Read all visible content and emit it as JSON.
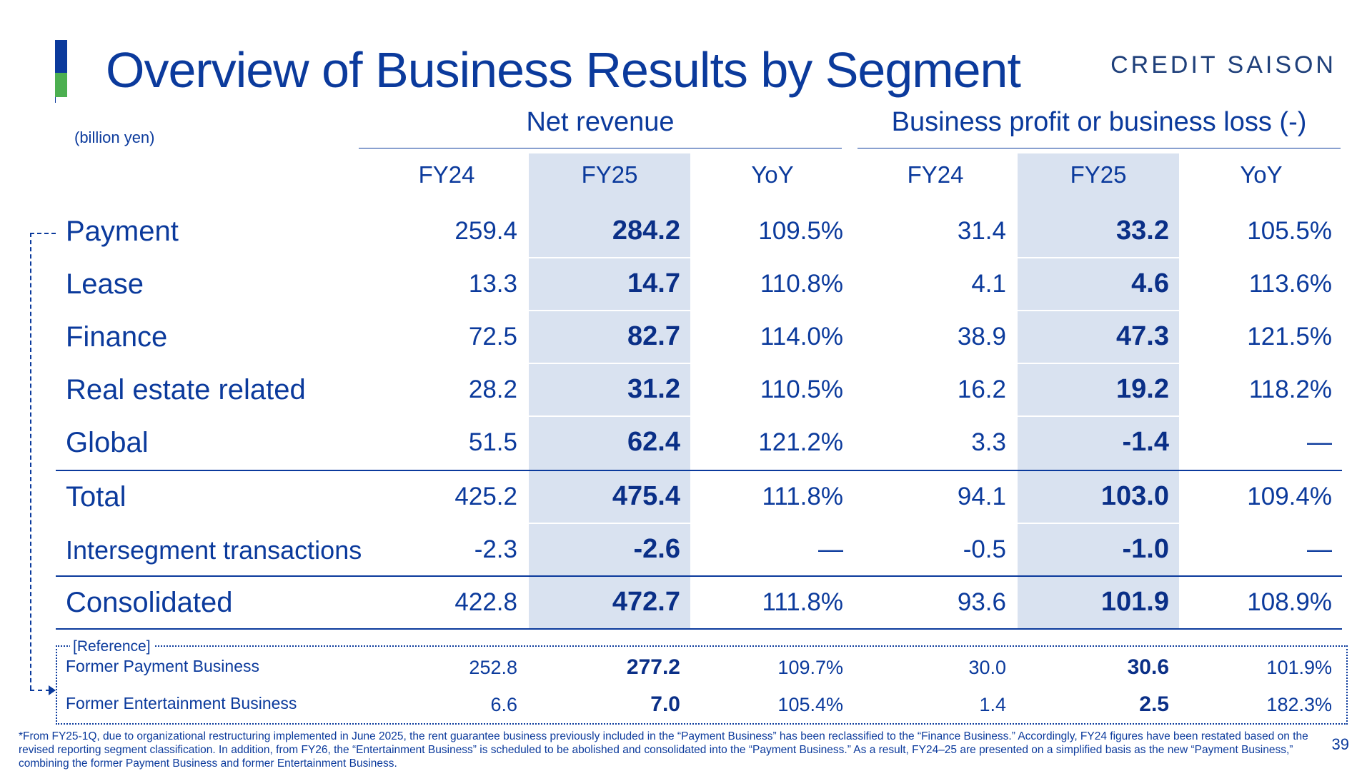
{
  "header": {
    "title": "Overview of Business Results by Segment",
    "logo_text": "CREDIT SAISON",
    "unit": "(billion yen)"
  },
  "groups": {
    "net_revenue": "Net revenue",
    "business_profit": "Business profit or business loss (-)"
  },
  "columns": [
    "FY24",
    "FY25",
    "YoY",
    "FY24",
    "FY25",
    "YoY"
  ],
  "rows": [
    {
      "label": "Payment",
      "values": [
        "259.4",
        "284.2",
        "109.5%",
        "31.4",
        "33.2",
        "105.5%"
      ]
    },
    {
      "label": "Lease",
      "values": [
        "13.3",
        "14.7",
        "110.8%",
        "4.1",
        "4.6",
        "113.6%"
      ]
    },
    {
      "label": "Finance",
      "values": [
        "72.5",
        "82.7",
        "114.0%",
        "38.9",
        "47.3",
        "121.5%"
      ]
    },
    {
      "label": "Real estate related",
      "values": [
        "28.2",
        "31.2",
        "110.5%",
        "16.2",
        "19.2",
        "118.2%"
      ]
    },
    {
      "label": "Global",
      "values": [
        "51.5",
        "62.4",
        "121.2%",
        "3.3",
        "-1.4",
        "—"
      ]
    },
    {
      "label": "Total",
      "values": [
        "425.2",
        "475.4",
        "111.8%",
        "94.1",
        "103.0",
        "109.4%"
      ]
    },
    {
      "label": "Intersegment transactions",
      "values": [
        "-2.3",
        "-2.6",
        "—",
        "-0.5",
        "-1.0",
        "—"
      ]
    },
    {
      "label": "Consolidated",
      "values": [
        "422.8",
        "472.7",
        "111.8%",
        "93.6",
        "101.9",
        "108.9%"
      ]
    }
  ],
  "reference": {
    "label": "[Reference]",
    "rows": [
      {
        "label": "Former Payment Business",
        "values": [
          "252.8",
          "277.2",
          "109.7%",
          "30.0",
          "30.6",
          "101.9%"
        ]
      },
      {
        "label": "Former Entertainment Business",
        "values": [
          "6.6",
          "7.0",
          "105.4%",
          "1.4",
          "2.5",
          "182.3%"
        ]
      }
    ]
  },
  "footnote": "*From FY25-1Q, due to organizational restructuring implemented in June 2025, the rent guarantee business previously included in the “Payment Business” has been reclassified to the “Finance Business.” Accordingly, FY24 figures have been restated based on the revised reporting segment classification. In addition, from FY26, the “Entertainment Business” is scheduled to be abolished and consolidated into the “Payment Business.”  As a result, FY24–25 are presented on a simplified basis as the new “Payment Business,” combining the former Payment Business and former Entertainment Business.",
  "page_number": "39",
  "colors": {
    "primary": "#0b3a9c",
    "accent_green": "#4caf50",
    "highlight": "#d9e2f0"
  }
}
